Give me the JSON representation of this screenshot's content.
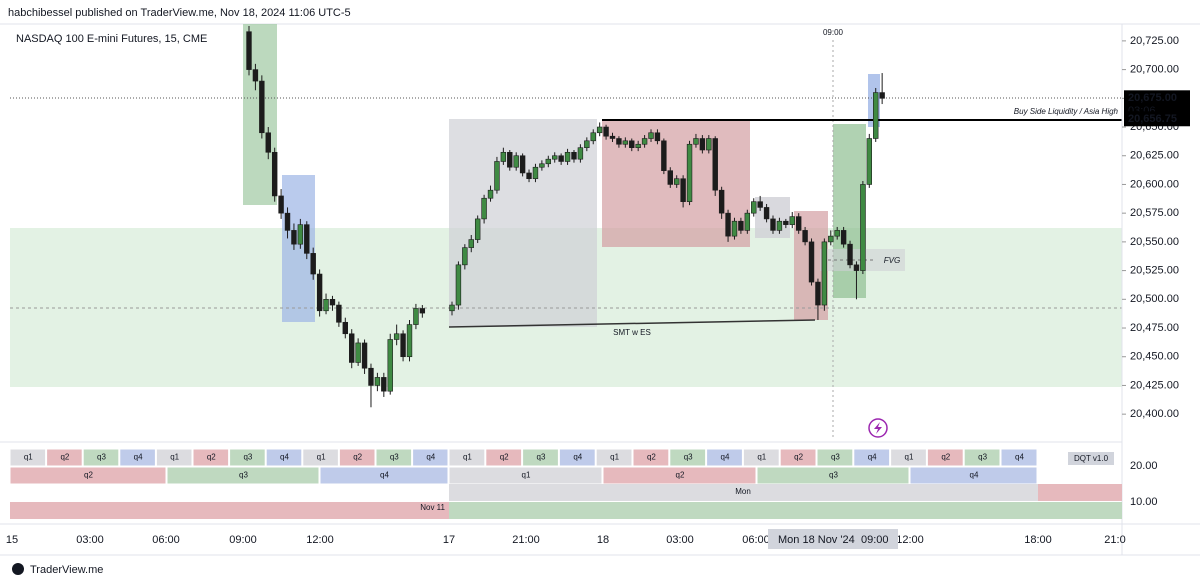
{
  "header": "habchibessel published on TraderView.me, Nov 18, 2024 11:06 UTC-5",
  "footer": "TraderView.me",
  "chart_data": {
    "type": "candlestick",
    "title": "NASDAQ 100 E-mini Futures, 15, CME",
    "up_color": "#3f8a43",
    "down_color": "#1c1c1c",
    "ylim": [
      20377.5,
      20739.7
    ],
    "yticks": [
      {
        "value": 20400,
        "label": "20,400.00"
      },
      {
        "value": 20425,
        "label": "20,425.00"
      },
      {
        "value": 20450,
        "label": "20,450.00"
      },
      {
        "value": 20475,
        "label": "20,475.00"
      },
      {
        "value": 20500,
        "label": "20,500.00"
      },
      {
        "value": 20525,
        "label": "20,525.00"
      },
      {
        "value": 20550,
        "label": "20,550.00"
      },
      {
        "value": 20575,
        "label": "20,575.00"
      },
      {
        "value": 20600,
        "label": "20,600.00"
      },
      {
        "value": 20625,
        "label": "20,625.00"
      },
      {
        "value": 20650,
        "label": "20,650.00"
      },
      {
        "value": 20675,
        "label": "20,675.00"
      },
      {
        "value": 20700,
        "label": "20,700.00"
      },
      {
        "value": 20725,
        "label": "20,725.00"
      }
    ],
    "x_labels": [
      "15",
      "03:00",
      "06:00",
      "09:00",
      "12:00",
      "17",
      "21:00",
      "18",
      "03:00",
      "06:00",
      "12:00",
      "18:00",
      "21:0"
    ],
    "crosshair_date": "Mon 18 Nov '24",
    "crosshair_time": "09:00",
    "top_time": "09:00",
    "price_labels": [
      {
        "value": 20675,
        "label": "20,675.00"
      },
      {
        "value": 20656.75,
        "label": "20,656.75"
      }
    ],
    "countdown": "03:06",
    "annotations": {
      "liquidity": "Buy Side Liquidity / Asia High",
      "smt": "SMT w ES",
      "fvg": "FVG"
    },
    "open": [
      20733,
      20700,
      20690,
      20645,
      20628,
      20590,
      20575,
      20560,
      20548,
      20565,
      20540,
      20522,
      20490,
      20500,
      20495,
      20480,
      20470,
      20445,
      20462,
      20440,
      20425,
      20432,
      20420,
      20465,
      20470,
      20450,
      20478,
      20492,
      20490,
      20495,
      20530,
      20545,
      20552,
      20570,
      20588,
      20595,
      20620,
      20628,
      20615,
      20625,
      20610,
      20605,
      20615,
      20618,
      20622,
      20625,
      20620,
      20628,
      20622,
      20632,
      20638,
      20645,
      20650,
      20642,
      20640,
      20635,
      20638,
      20632,
      20635,
      20640,
      20645,
      20638,
      20612,
      20600,
      20605,
      20585,
      20635,
      20640,
      20630,
      20640,
      20595,
      20575,
      20555,
      20568,
      20560,
      20575,
      20585,
      20580,
      20570,
      20560,
      20568,
      20565,
      20572,
      20560,
      20550,
      20515,
      20495,
      20550,
      20555,
      20560,
      20548,
      20530,
      20525,
      20600,
      20640,
      20680
    ],
    "high": [
      20738,
      20705,
      20695,
      20650,
      20632,
      20596,
      20580,
      20566,
      20570,
      20568,
      20545,
      20526,
      20505,
      20503,
      20498,
      20484,
      20474,
      20466,
      20465,
      20444,
      20436,
      20436,
      20470,
      20478,
      20473,
      20482,
      20496,
      20495,
      20498,
      20533,
      20548,
      20556,
      20573,
      20591,
      20599,
      20624,
      20632,
      20630,
      20628,
      20627,
      20613,
      20618,
      20621,
      20625,
      20628,
      20627,
      20631,
      20630,
      20635,
      20641,
      20648,
      20654,
      20652,
      20645,
      20642,
      20641,
      20640,
      20638,
      20643,
      20648,
      20648,
      20640,
      20615,
      20608,
      20608,
      20638,
      20644,
      20643,
      20643,
      20642,
      20598,
      20578,
      20571,
      20571,
      20578,
      20588,
      20590,
      20583,
      20573,
      20571,
      20570,
      20576,
      20575,
      20563,
      20553,
      20518,
      20553,
      20560,
      20563,
      20563,
      20551,
      20533,
      20603,
      20644,
      20684,
      20697
    ],
    "low": [
      20695,
      20682,
      20640,
      20622,
      20585,
      20570,
      20553,
      20543,
      20544,
      20535,
      20517,
      20485,
      20487,
      20490,
      20476,
      20466,
      20440,
      20442,
      20435,
      20406,
      20420,
      20415,
      20417,
      20460,
      20446,
      20446,
      20474,
      20484,
      20486,
      20491,
      20526,
      20541,
      20549,
      20566,
      20585,
      20592,
      20617,
      20612,
      20612,
      20607,
      20602,
      20602,
      20612,
      20615,
      20619,
      20617,
      20617,
      20619,
      20619,
      20629,
      20635,
      20642,
      20639,
      20637,
      20632,
      20632,
      20629,
      20629,
      20632,
      20637,
      20635,
      20609,
      20597,
      20597,
      20580,
      20582,
      20632,
      20627,
      20627,
      20590,
      20570,
      20550,
      20552,
      20557,
      20557,
      20572,
      20577,
      20567,
      20557,
      20557,
      20562,
      20562,
      20557,
      20547,
      20512,
      20482,
      20490,
      20547,
      20552,
      20545,
      20527,
      20500,
      20522,
      20597,
      20637,
      20670
    ],
    "close": [
      20700,
      20690,
      20645,
      20628,
      20590,
      20575,
      20560,
      20548,
      20565,
      20540,
      20522,
      20490,
      20500,
      20495,
      20480,
      20470,
      20445,
      20462,
      20440,
      20425,
      20432,
      20420,
      20465,
      20470,
      20450,
      20478,
      20492,
      20488,
      20495,
      20530,
      20545,
      20552,
      20570,
      20588,
      20595,
      20620,
      20628,
      20615,
      20625,
      20610,
      20605,
      20615,
      20618,
      20622,
      20625,
      20620,
      20628,
      20622,
      20632,
      20638,
      20645,
      20650,
      20642,
      20640,
      20635,
      20638,
      20632,
      20635,
      20640,
      20645,
      20638,
      20612,
      20600,
      20605,
      20585,
      20635,
      20640,
      20630,
      20640,
      20595,
      20575,
      20555,
      20568,
      20560,
      20575,
      20585,
      20580,
      20570,
      20560,
      20568,
      20565,
      20572,
      20560,
      20550,
      20515,
      20495,
      20550,
      20555,
      20560,
      20548,
      20530,
      20525,
      20600,
      20640,
      20680,
      20675
    ]
  },
  "indicator": {
    "name": "DQT v1.0",
    "yticks": [
      "20.00",
      "10.00"
    ],
    "row1": {
      "labels": [
        "q1",
        "q2",
        "q3",
        "q4",
        "q1",
        "q2",
        "q3",
        "q4",
        "q1",
        "q2",
        "q3",
        "q4",
        "q1",
        "q2",
        "q3",
        "q4",
        "q1",
        "q2",
        "q3",
        "q4",
        "q1",
        "q2",
        "q3",
        "q4",
        "q1",
        "q2",
        "q3",
        "q4"
      ],
      "colors": [
        "#dcdce0",
        "#e6b9bd",
        "#bfd9c0",
        "#bfcbea",
        "#dcdce0",
        "#e6b9bd",
        "#bfd9c0",
        "#bfcbea",
        "#dcdce0",
        "#e6b9bd",
        "#bfd9c0",
        "#bfcbea",
        "#dcdce0",
        "#e6b9bd",
        "#bfd9c0",
        "#bfcbea",
        "#dcdce0",
        "#e6b9bd",
        "#bfd9c0",
        "#bfcbea",
        "#dcdce0",
        "#e6b9bd",
        "#bfd9c0",
        "#bfcbea",
        "#dcdce0",
        "#e6b9bd",
        "#bfd9c0",
        "#bfcbea"
      ]
    },
    "row2": {
      "labels": [
        "q2",
        "q3",
        "q4",
        "q1",
        "q2",
        "q3",
        "q4"
      ],
      "colors": [
        "#e6b9bd",
        "#bfd9c0",
        "#bfcbea",
        "#dcdce0",
        "#e6b9bd",
        "#bfd9c0",
        "#bfcbea"
      ]
    },
    "day": "Mon",
    "week": "Nov 11"
  }
}
